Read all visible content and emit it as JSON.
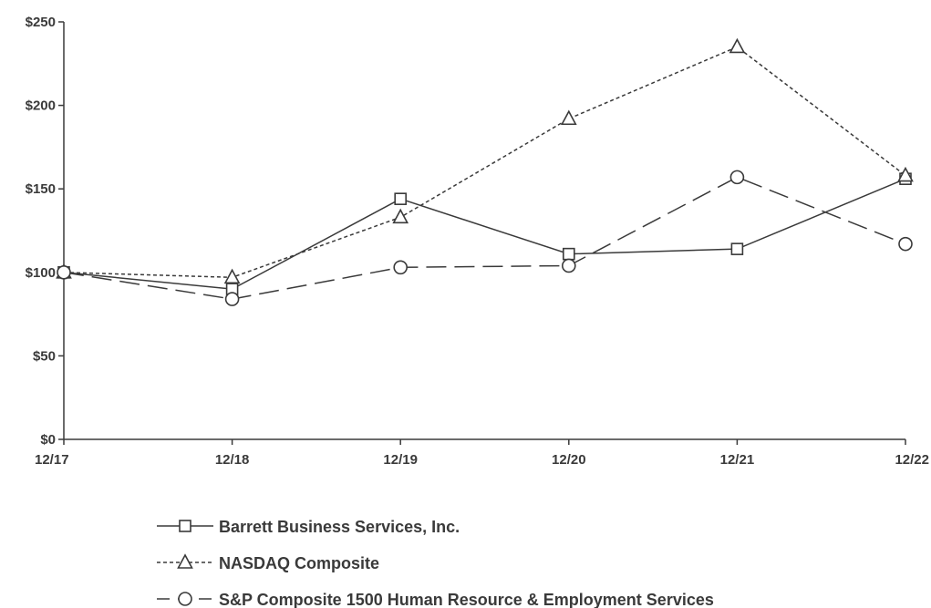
{
  "chart_data": {
    "type": "line",
    "title": "",
    "xlabel": "",
    "ylabel": "",
    "categories": [
      "12/17",
      "12/18",
      "12/19",
      "12/20",
      "12/21",
      "12/22"
    ],
    "y_tick_labels": [
      "$0",
      "$50",
      "$100",
      "$150",
      "$200",
      "$250"
    ],
    "ylim": [
      0,
      250
    ],
    "grid": false,
    "legend_position": "bottom",
    "series": [
      {
        "name": "Barrett Business Services, Inc.",
        "values": [
          100,
          90,
          144,
          111,
          114,
          156
        ],
        "marker": "square",
        "line_style": "solid"
      },
      {
        "name": "NASDAQ Composite",
        "values": [
          100,
          97,
          133,
          192,
          235,
          158
        ],
        "marker": "triangle",
        "line_style": "dotted"
      },
      {
        "name": "S&P Composite 1500 Human Resource & Employment Services",
        "values": [
          100,
          84,
          103,
          104,
          157,
          117
        ],
        "marker": "circle",
        "line_style": "dashed"
      }
    ],
    "colors": {
      "line": "#3a3a3a",
      "axis": "#3a3a3a",
      "background": "#ffffff"
    }
  }
}
